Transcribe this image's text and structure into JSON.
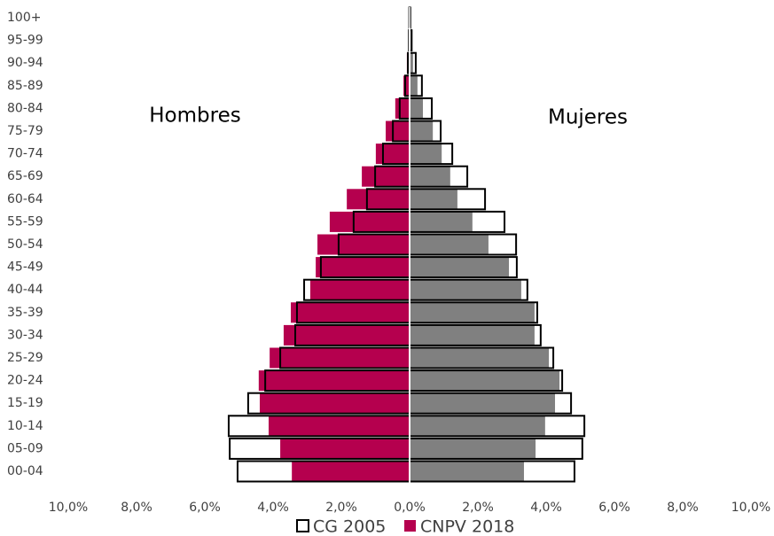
{
  "chart_data": {
    "type": "pyramid",
    "categories": [
      "00-04",
      "05-09",
      "10-14",
      "15-19",
      "20-24",
      "25-29",
      "30-34",
      "35-39",
      "40-44",
      "45-49",
      "50-54",
      "55-59",
      "60-64",
      "65-69",
      "70-74",
      "75-79",
      "80-84",
      "85-89",
      "90-94",
      "95-99",
      "100+"
    ],
    "series": [
      {
        "name": "CG 2005",
        "color": "#ffffff",
        "values": [
          5.04,
          5.27,
          5.3,
          4.73,
          4.23,
          3.79,
          3.35,
          3.3,
          3.09,
          2.6,
          2.08,
          1.64,
          1.25,
          1.01,
          0.78,
          0.49,
          0.29,
          0.13,
          0.05,
          0.02,
          0.01
        ],
        "values_female": [
          4.83,
          5.06,
          5.12,
          4.73,
          4.47,
          4.21,
          3.84,
          3.74,
          3.45,
          3.14,
          3.12,
          2.78,
          2.21,
          1.69,
          1.25,
          0.91,
          0.65,
          0.36,
          0.18,
          0.06,
          0.02
        ]
      },
      {
        "name": "CNPV 2018",
        "color": "#b5004e",
        "color_female": "#808080",
        "values": [
          3.45,
          3.79,
          4.13,
          4.39,
          4.42,
          4.1,
          3.69,
          3.48,
          2.91,
          2.75,
          2.7,
          2.34,
          1.84,
          1.4,
          0.99,
          0.7,
          0.42,
          0.18,
          0.08,
          0.03,
          0.01
        ],
        "values_female": [
          3.35,
          3.69,
          3.97,
          4.26,
          4.39,
          4.08,
          3.66,
          3.66,
          3.27,
          2.91,
          2.31,
          1.84,
          1.4,
          1.19,
          0.94,
          0.68,
          0.39,
          0.23,
          0.1,
          0.04,
          0.01
        ]
      }
    ],
    "annotations": [
      "Hombres",
      "Mujeres"
    ],
    "xlim": [
      -10,
      10
    ],
    "xticks": [
      {
        "value": -10,
        "label": "10,0%"
      },
      {
        "value": -8,
        "label": "8,0%"
      },
      {
        "value": -6,
        "label": "6,0%"
      },
      {
        "value": -4,
        "label": "4,0%"
      },
      {
        "value": -2,
        "label": "2,0%"
      },
      {
        "value": 0,
        "label": "0,0%"
      },
      {
        "value": 2,
        "label": "2,0%"
      },
      {
        "value": 4,
        "label": "4,0%"
      },
      {
        "value": 6,
        "label": "6,0%"
      },
      {
        "value": 8,
        "label": "8,0%"
      },
      {
        "value": 10,
        "label": "10,0%"
      }
    ],
    "legend": "bottom"
  }
}
